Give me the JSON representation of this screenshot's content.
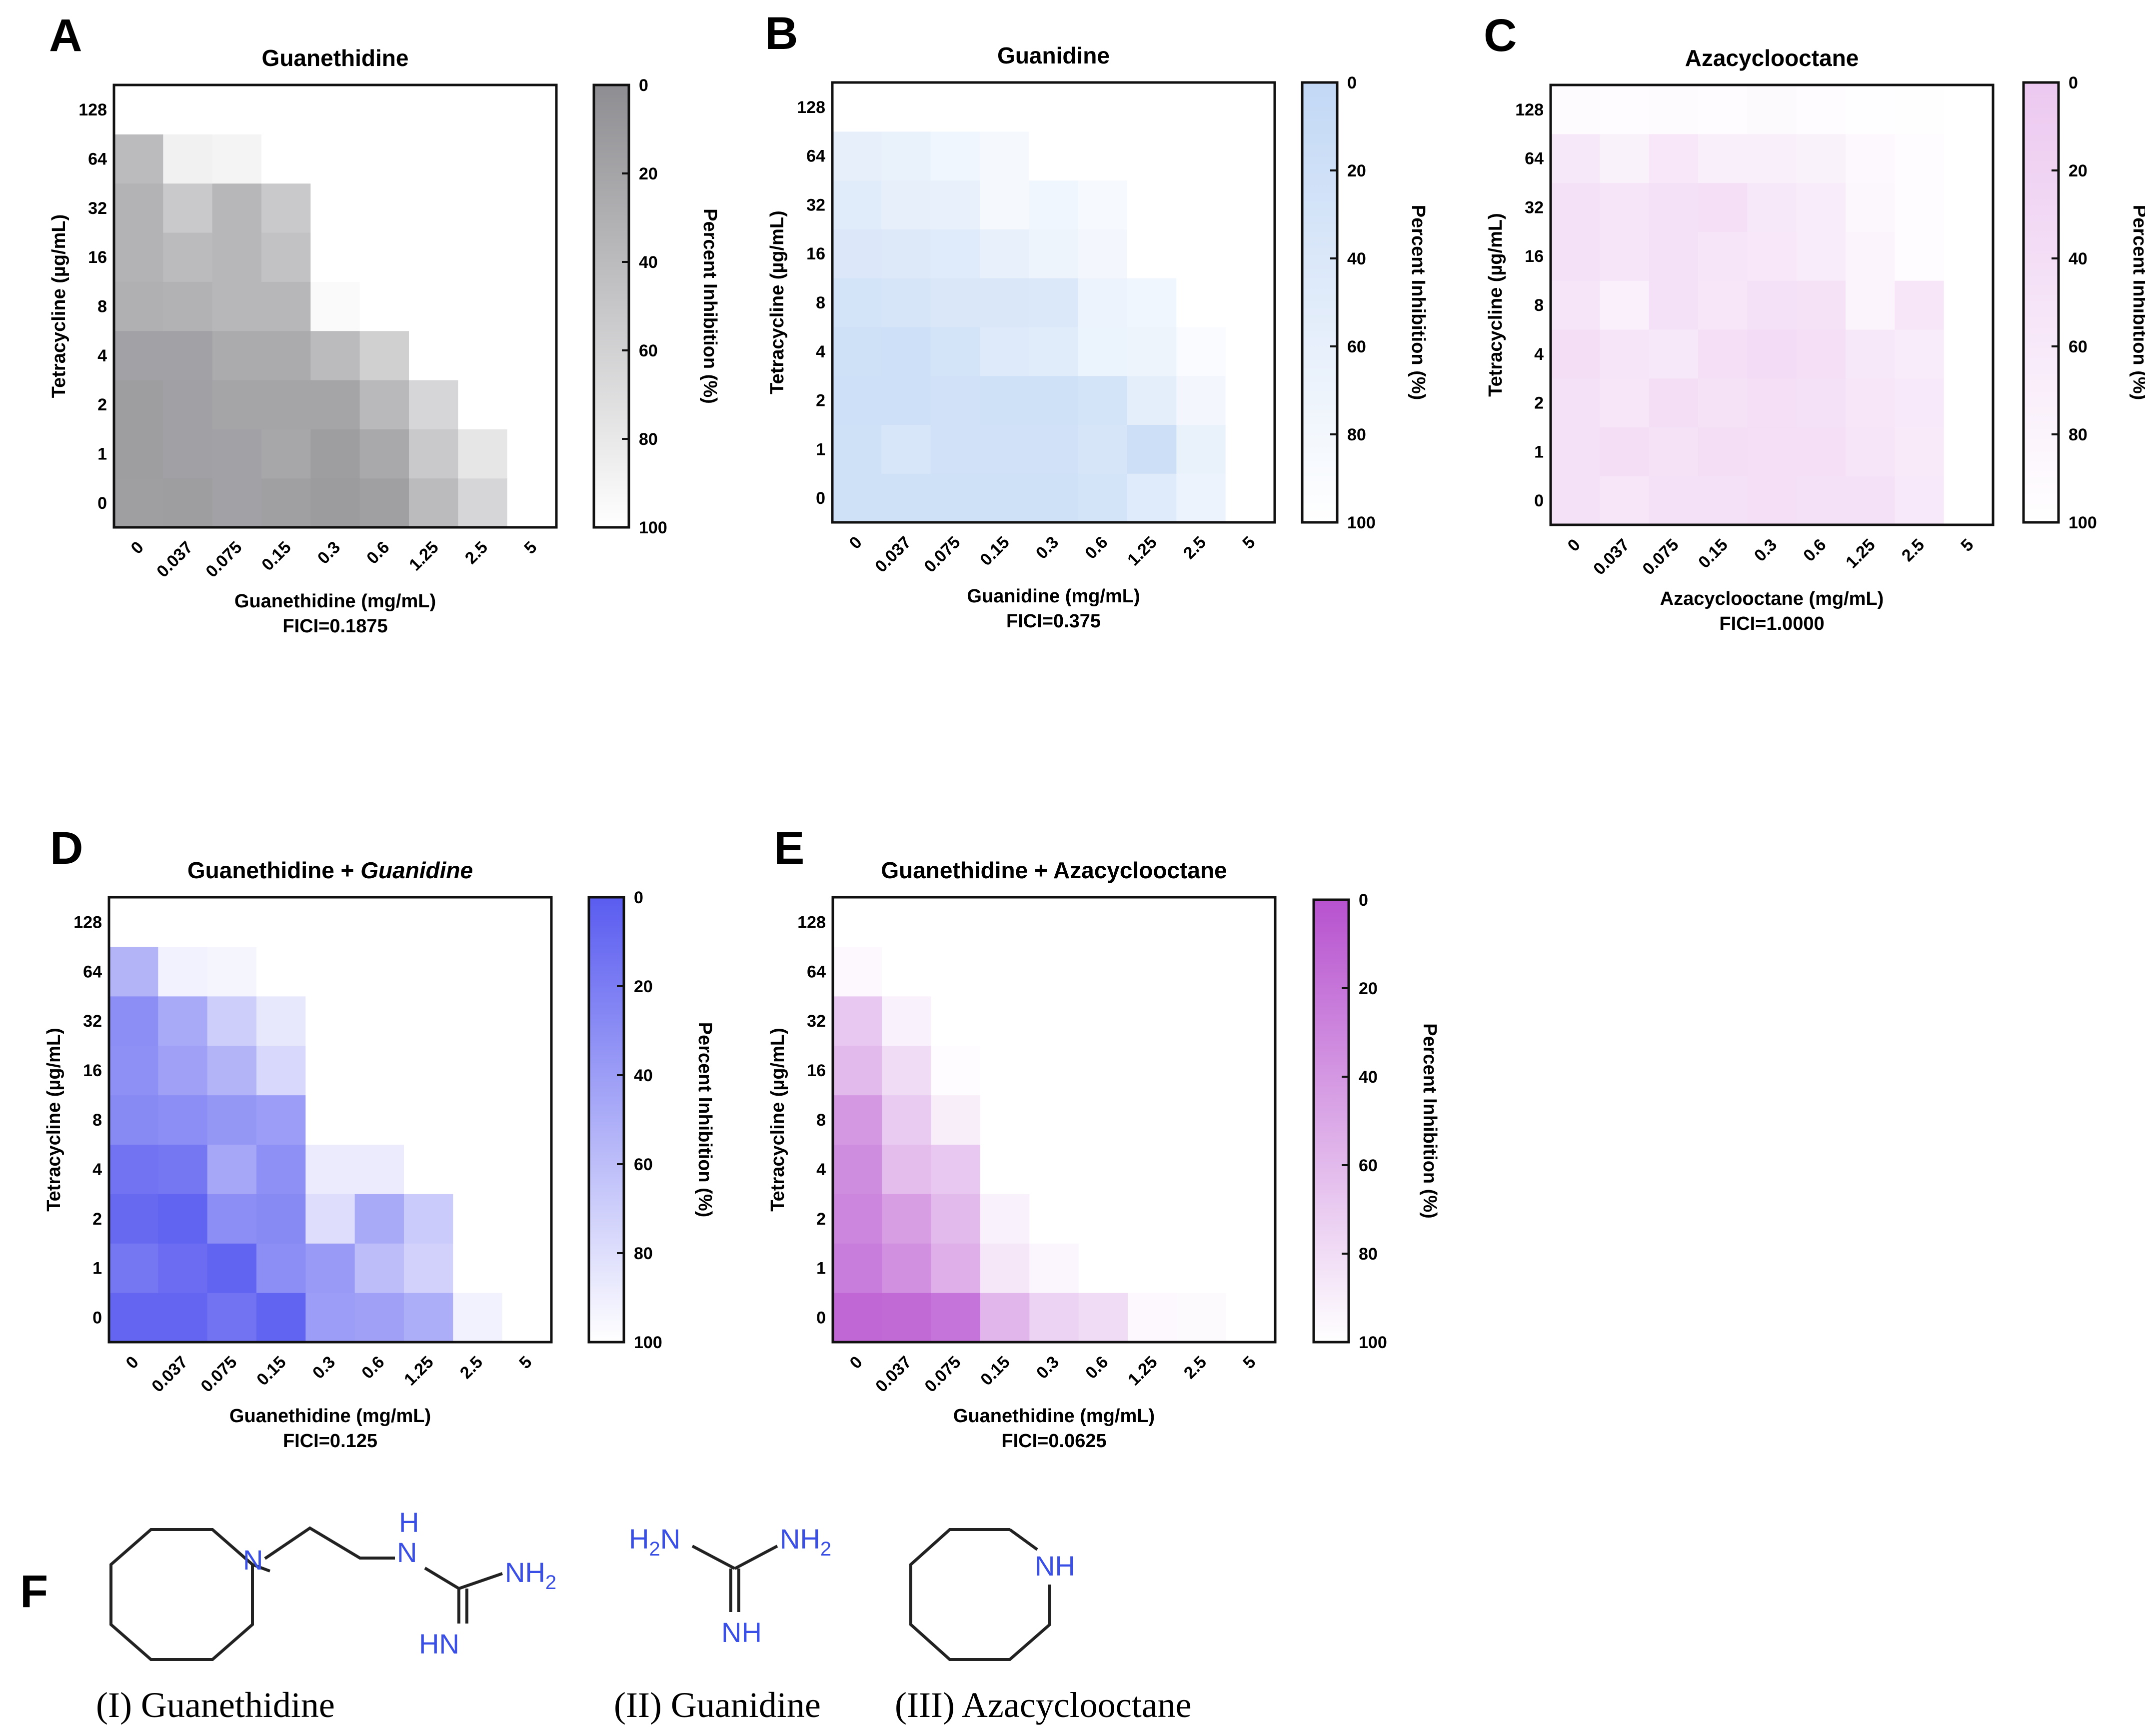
{
  "panel_letters": {
    "A": "A",
    "B": "B",
    "C": "C",
    "D": "D",
    "E": "E",
    "F": "F"
  },
  "chart_data": [
    {
      "id": "A",
      "type": "heatmap",
      "title": "Guanethidine",
      "xlabel": "Guanethidine (mg/mL)",
      "ylabel": "Tetracycline (µg/mL)",
      "xticks": [
        "0",
        "0.037",
        "0.075",
        "0.15",
        "0.3",
        "0.6",
        "1.25",
        "2.5",
        "5"
      ],
      "yticks": [
        "0",
        "1",
        "2",
        "4",
        "8",
        "16",
        "32",
        "64",
        "128"
      ],
      "fici": "FICI=0.1875",
      "colorbar": {
        "label": "Percent Inhibition (%)",
        "ticks": [
          "0",
          "20",
          "40",
          "60",
          "80",
          "100"
        ],
        "color": "#8e8e92"
      },
      "values": [
        [
          15,
          14,
          18,
          16,
          12,
          16,
          40,
          64,
          100
        ],
        [
          14,
          17,
          18,
          22,
          14,
          24,
          52,
          78,
          100
        ],
        [
          14,
          17,
          20,
          20,
          20,
          38,
          64,
          100,
          100
        ],
        [
          18,
          18,
          26,
          26,
          40,
          58,
          100,
          100,
          100
        ],
        [
          30,
          32,
          36,
          36,
          96,
          100,
          100,
          100,
          100
        ],
        [
          33,
          40,
          36,
          46,
          100,
          100,
          100,
          100,
          100
        ],
        [
          33,
          52,
          36,
          52,
          100,
          100,
          100,
          100,
          100
        ],
        [
          40,
          88,
          90,
          100,
          100,
          100,
          100,
          100,
          100
        ],
        [
          100,
          100,
          100,
          100,
          100,
          100,
          100,
          100,
          100
        ]
      ]
    },
    {
      "id": "B",
      "type": "heatmap",
      "title": "Guanidine",
      "xlabel": "Guanidine (mg/mL)",
      "ylabel": "Tetracycline (µg/mL)",
      "xticks": [
        "0",
        "0.037",
        "0.075",
        "0.15",
        "0.3",
        "0.6",
        "1.25",
        "2.5",
        "5"
      ],
      "yticks": [
        "0",
        "1",
        "2",
        "4",
        "8",
        "16",
        "32",
        "64",
        "128"
      ],
      "fici": "FICI=0.375",
      "colorbar": {
        "label": "Percent Inhibition (%)",
        "ticks": [
          "0",
          "20",
          "40",
          "60",
          "80",
          "100"
        ],
        "color": "#c2d8f5"
      },
      "values": [
        [
          22,
          22,
          22,
          22,
          22,
          30,
          48,
          70,
          100
        ],
        [
          22,
          36,
          24,
          24,
          24,
          34,
          18,
          64,
          100
        ],
        [
          20,
          20,
          24,
          22,
          22,
          28,
          56,
          80,
          100
        ],
        [
          22,
          20,
          30,
          46,
          50,
          68,
          72,
          90,
          100
        ],
        [
          30,
          34,
          38,
          38,
          40,
          70,
          76,
          100,
          100
        ],
        [
          42,
          44,
          48,
          62,
          72,
          80,
          100,
          100,
          100
        ],
        [
          50,
          60,
          62,
          84,
          76,
          86,
          100,
          100,
          100
        ],
        [
          60,
          64,
          76,
          84,
          100,
          100,
          100,
          100,
          100
        ],
        [
          100,
          100,
          100,
          100,
          100,
          100,
          100,
          100,
          100
        ]
      ]
    },
    {
      "id": "C",
      "type": "heatmap",
      "title": "Azacyclooctane",
      "xlabel": "Azacyclooctane (mg/mL)",
      "ylabel": "Tetracycline (µg/mL)",
      "xticks": [
        "0",
        "0.037",
        "0.075",
        "0.15",
        "0.3",
        "0.6",
        "1.25",
        "2.5",
        "5"
      ],
      "yticks": [
        "0",
        "1",
        "2",
        "4",
        "8",
        "16",
        "32",
        "64",
        "128"
      ],
      "fici": "FICI=1.0000",
      "colorbar": {
        "label": "Percent Inhibition (%)",
        "ticks": [
          "0",
          "20",
          "40",
          "60",
          "80",
          "100"
        ],
        "color": "#ecc8f0"
      },
      "values": [
        [
          44,
          54,
          44,
          46,
          42,
          44,
          46,
          60,
          100
        ],
        [
          44,
          40,
          48,
          40,
          42,
          42,
          52,
          62,
          100
        ],
        [
          46,
          54,
          40,
          48,
          42,
          44,
          54,
          60,
          100
        ],
        [
          40,
          50,
          58,
          42,
          36,
          42,
          58,
          66,
          100
        ],
        [
          52,
          72,
          46,
          54,
          44,
          48,
          80,
          54,
          100
        ],
        [
          44,
          52,
          46,
          50,
          56,
          64,
          80,
          94,
          100
        ],
        [
          46,
          52,
          44,
          42,
          58,
          66,
          84,
          94,
          100
        ],
        [
          58,
          76,
          56,
          70,
          70,
          76,
          88,
          94,
          100
        ],
        [
          92,
          95,
          93,
          95,
          90,
          94,
          97,
          98,
          100
        ]
      ]
    },
    {
      "id": "D",
      "type": "heatmap",
      "title": "Guanethidine + ",
      "title_italic": "Guanidine",
      "xlabel": "Guanethidine (mg/mL)",
      "ylabel": "Tetracycline (µg/mL)",
      "xticks": [
        "0",
        "0.037",
        "0.075",
        "0.15",
        "0.3",
        "0.6",
        "1.25",
        "2.5",
        "5"
      ],
      "yticks": [
        "0",
        "1",
        "2",
        "4",
        "8",
        "16",
        "32",
        "64",
        "128"
      ],
      "fici": "FICI=0.125",
      "colorbar": {
        "label": "Percent Inhibition (%)",
        "ticks": [
          "0",
          "20",
          "40",
          "60",
          "80",
          "100"
        ],
        "color": "#5a5cf0"
      },
      "values": [
        [
          6,
          6,
          14,
          4,
          40,
          42,
          50,
          92,
          100
        ],
        [
          16,
          10,
          4,
          30,
          38,
          60,
          72,
          100,
          100
        ],
        [
          8,
          4,
          30,
          28,
          80,
          48,
          68,
          100,
          100
        ],
        [
          14,
          16,
          46,
          32,
          88,
          88,
          100,
          100,
          100
        ],
        [
          28,
          30,
          36,
          40,
          100,
          100,
          100,
          100,
          100
        ],
        [
          32,
          42,
          54,
          76,
          100,
          100,
          100,
          100,
          100
        ],
        [
          30,
          48,
          70,
          86,
          100,
          100,
          100,
          100,
          100
        ],
        [
          54,
          92,
          94,
          100,
          100,
          100,
          100,
          100,
          100
        ],
        [
          100,
          100,
          100,
          100,
          100,
          100,
          100,
          100,
          100
        ]
      ]
    },
    {
      "id": "E",
      "type": "heatmap",
      "title": "Guanethidine + Azacyclooctane",
      "xlabel": "Guanethidine (mg/mL)",
      "ylabel": "Tetracycline (µg/mL)",
      "xticks": [
        "0",
        "0.037",
        "0.075",
        "0.15",
        "0.3",
        "0.6",
        "1.25",
        "2.5",
        "5"
      ],
      "yticks": [
        "0",
        "1",
        "2",
        "4",
        "8",
        "16",
        "32",
        "64",
        "128"
      ],
      "fici": "FICI=0.0625",
      "colorbar": {
        "label": "Percent Inhibition (%)",
        "ticks": [
          "0",
          "20",
          "40",
          "60",
          "80",
          "100"
        ],
        "color": "#b752cf"
      },
      "values": [
        [
          12,
          14,
          20,
          58,
          74,
          80,
          96,
          97,
          100
        ],
        [
          24,
          36,
          54,
          86,
          95,
          100,
          100,
          100,
          100
        ],
        [
          30,
          44,
          60,
          92,
          100,
          100,
          100,
          100,
          100
        ],
        [
          34,
          62,
          68,
          100,
          100,
          100,
          100,
          100,
          100
        ],
        [
          40,
          70,
          90,
          100,
          100,
          100,
          100,
          100,
          100
        ],
        [
          60,
          80,
          98,
          100,
          100,
          100,
          100,
          100,
          100
        ],
        [
          68,
          92,
          100,
          100,
          100,
          100,
          100,
          100,
          100
        ],
        [
          96,
          100,
          100,
          100,
          100,
          100,
          100,
          100,
          100
        ],
        [
          100,
          100,
          100,
          100,
          100,
          100,
          100,
          100,
          100
        ]
      ]
    }
  ],
  "molecules": {
    "guanethidine": {
      "label": "(I) Guanethidine",
      "atoms": {
        "n": "N",
        "nh_top": "H",
        "n_top": "N",
        "nh2": "NH",
        "nh2_sub": "2",
        "hn": "HN"
      }
    },
    "guanidine": {
      "label": "(II) Guanidine",
      "atoms": {
        "h2n": "H",
        "h2n_sub": "2",
        "h2n_n": "N",
        "nh2": "NH",
        "nh2_sub": "2",
        "nh": "NH"
      }
    },
    "azacyclooctane": {
      "label": "(III) Azacyclooctane",
      "atoms": {
        "nh": "NH"
      }
    }
  }
}
